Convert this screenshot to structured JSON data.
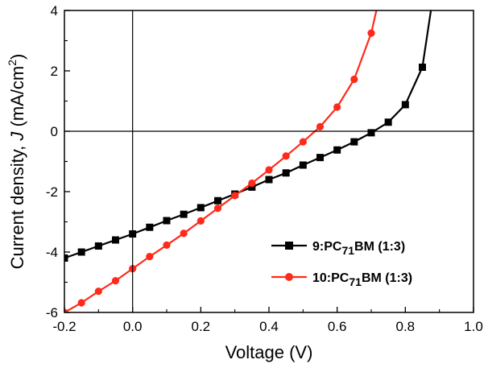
{
  "chart_data": {
    "type": "line",
    "xlabel": "Voltage (V)",
    "ylabel_parts": [
      "Current density, ",
      "J",
      " (mA/cm",
      "2",
      ")"
    ],
    "xlim": [
      -0.2,
      1.0
    ],
    "ylim": [
      -6,
      4
    ],
    "xticks": [
      -0.2,
      0.0,
      0.2,
      0.4,
      0.6,
      0.8,
      1.0
    ],
    "xtick_labels": [
      "-0.2",
      "0.0",
      "0.2",
      "0.4",
      "0.6",
      "0.8",
      "1.0"
    ],
    "yticks": [
      -6,
      -4,
      -2,
      0,
      2,
      4
    ],
    "ytick_labels": [
      "-6",
      "-4",
      "-2",
      "0",
      "2",
      "4"
    ],
    "reference_lines": {
      "x": 0,
      "y": 0
    },
    "legend_position": "bottom-right",
    "series": [
      {
        "name": "9:PC71BM (1:3)",
        "legend_parts": [
          "9:PC",
          "71",
          "BM (1:3)"
        ],
        "color": "#000000",
        "marker": "square",
        "x": [
          -0.2,
          -0.15,
          -0.1,
          -0.05,
          0.0,
          0.05,
          0.1,
          0.15,
          0.2,
          0.25,
          0.3,
          0.35,
          0.4,
          0.45,
          0.5,
          0.55,
          0.6,
          0.65,
          0.7,
          0.75,
          0.8,
          0.85,
          0.875
        ],
        "y": [
          -4.2,
          -4.0,
          -3.8,
          -3.6,
          -3.4,
          -3.18,
          -2.96,
          -2.75,
          -2.53,
          -2.3,
          -2.08,
          -1.85,
          -1.6,
          -1.38,
          -1.12,
          -0.87,
          -0.62,
          -0.35,
          -0.05,
          0.3,
          0.88,
          2.12,
          4.0
        ]
      },
      {
        "name": "10:PC71BM (1:3)",
        "legend_parts": [
          "10:PC",
          "71",
          "BM (1:3)"
        ],
        "color": "#ff2a1a",
        "marker": "circle",
        "x": [
          -0.2,
          -0.15,
          -0.1,
          -0.05,
          0.0,
          0.05,
          0.1,
          0.15,
          0.2,
          0.25,
          0.3,
          0.35,
          0.4,
          0.45,
          0.5,
          0.55,
          0.6,
          0.65,
          0.7,
          0.715
        ],
        "y": [
          -6.0,
          -5.68,
          -5.3,
          -4.95,
          -4.55,
          -4.15,
          -3.77,
          -3.38,
          -2.97,
          -2.55,
          -2.13,
          -1.72,
          -1.28,
          -0.82,
          -0.35,
          0.15,
          0.8,
          1.72,
          3.25,
          4.0
        ]
      }
    ]
  }
}
